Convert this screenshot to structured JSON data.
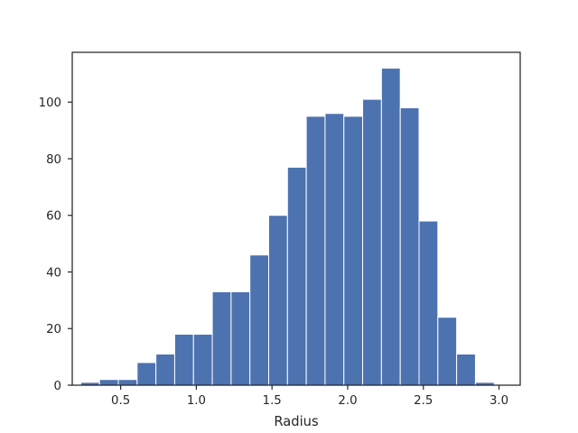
{
  "chart_data": {
    "type": "bar",
    "title": "",
    "xlabel": "Radius",
    "ylabel": "",
    "grid": false,
    "bar_color": "#4c72b0",
    "edge_color": "#ffffff",
    "axis_color": "#262626",
    "xlim": [
      0.18,
      3.14
    ],
    "ylim": [
      0,
      117.6
    ],
    "bins": {
      "start": 0.236,
      "width": 0.1242,
      "count": 22
    },
    "values": [
      1,
      2,
      2,
      8,
      11,
      18,
      18,
      33,
      33,
      46,
      60,
      77,
      95,
      96,
      95,
      101,
      112,
      98,
      58,
      24,
      11,
      1
    ],
    "x_ticks": [
      {
        "value": 0.5,
        "label": "0.5"
      },
      {
        "value": 1.0,
        "label": "1.0"
      },
      {
        "value": 1.5,
        "label": "1.5"
      },
      {
        "value": 2.0,
        "label": "2.0"
      },
      {
        "value": 2.5,
        "label": "2.5"
      },
      {
        "value": 3.0,
        "label": "3.0"
      }
    ],
    "y_ticks": [
      {
        "value": 0,
        "label": "0"
      },
      {
        "value": 20,
        "label": "20"
      },
      {
        "value": 40,
        "label": "40"
      },
      {
        "value": 60,
        "label": "60"
      },
      {
        "value": 80,
        "label": "80"
      },
      {
        "value": 100,
        "label": "100"
      }
    ]
  }
}
